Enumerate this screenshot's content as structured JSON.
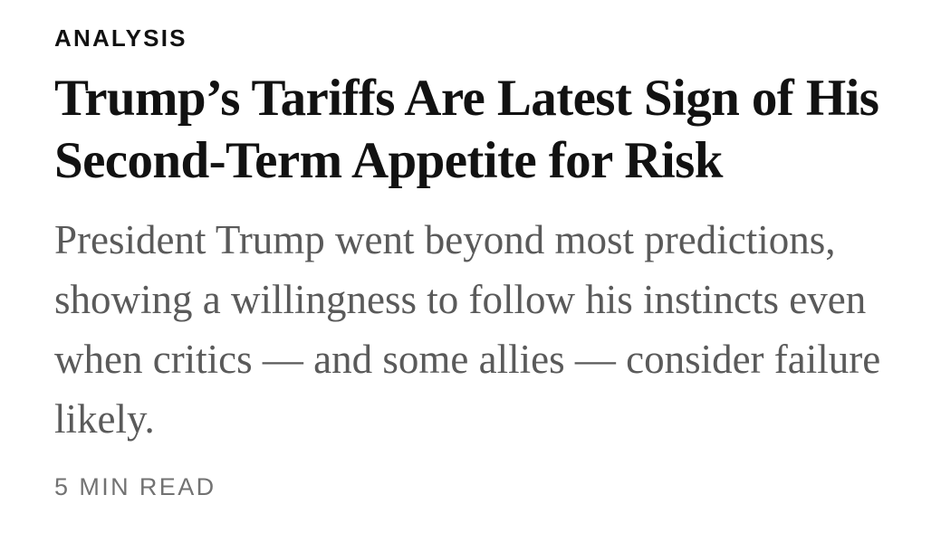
{
  "article": {
    "kicker": "ANALYSIS",
    "headline": "Trump’s Tariffs Are Latest Sign of His Second-Term Appetite for Risk",
    "summary": "President Trump went beyond most predictions, showing a willingness to follow his instincts even when critics — and some allies — consider failure likely.",
    "read_time": "5 MIN READ"
  },
  "colors": {
    "headline": "#121212",
    "summary": "#5a5a5a",
    "read_time": "#727272",
    "background": "#ffffff"
  }
}
